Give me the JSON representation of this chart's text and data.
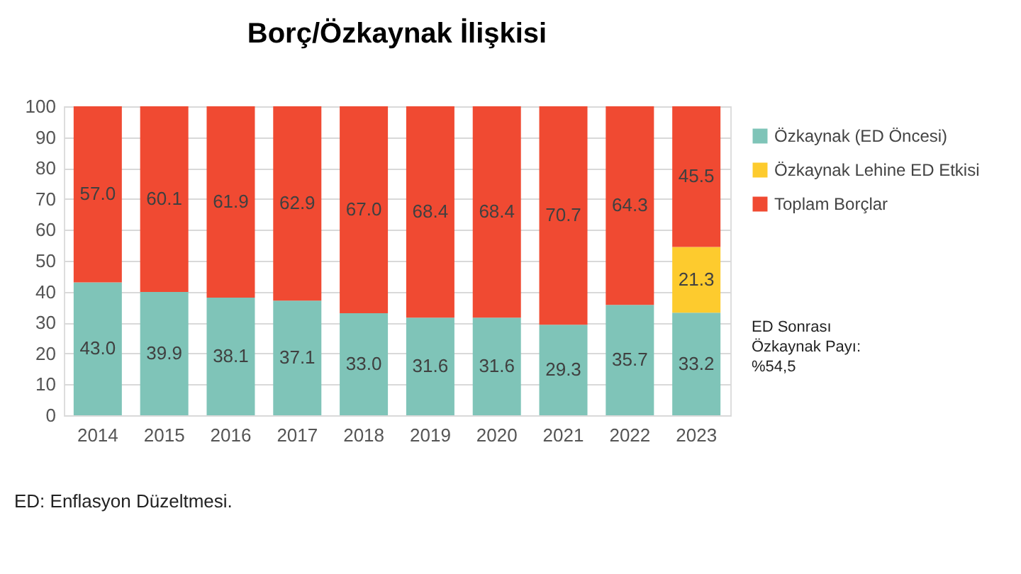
{
  "chart_data": {
    "type": "bar",
    "title": "Borç/Özkaynak İlişkisi",
    "stacked": true,
    "grid": "y",
    "legend": "right",
    "categories": [
      "2014",
      "2015",
      "2016",
      "2017",
      "2018",
      "2019",
      "2020",
      "2021",
      "2022",
      "2023"
    ],
    "series": [
      {
        "name": "Özkaynak (ED Öncesi)",
        "color": "#7fc4b8",
        "values": [
          43.0,
          39.9,
          38.1,
          37.1,
          33.0,
          31.6,
          31.6,
          29.3,
          35.7,
          33.2
        ],
        "value_labels": [
          "43.0",
          "39.9",
          "38.1",
          "37.1",
          "33.0",
          "31.6",
          "31.6",
          "29.3",
          "35.7",
          "33.2"
        ]
      },
      {
        "name": "Özkaynak Lehine ED Etkisi",
        "color": "#fdcb2e",
        "values": [
          null,
          null,
          null,
          null,
          null,
          null,
          null,
          null,
          null,
          21.3
        ],
        "value_labels": [
          null,
          null,
          null,
          null,
          null,
          null,
          null,
          null,
          null,
          "21.3"
        ]
      },
      {
        "name": "Toplam Borçlar",
        "color": "#f04a32",
        "values": [
          57.0,
          60.1,
          61.9,
          62.9,
          67.0,
          68.4,
          68.4,
          70.7,
          64.3,
          45.5
        ],
        "value_labels": [
          "57.0",
          "60.1",
          "61.9",
          "62.9",
          "67.0",
          "68.4",
          "68.4",
          "70.7",
          "64.3",
          "45.5"
        ]
      }
    ],
    "ylim": [
      0,
      100
    ],
    "yticks": [
      0,
      10,
      20,
      30,
      40,
      50,
      60,
      70,
      80,
      90,
      100
    ],
    "annotations": [
      "ED Sonrası\nÖzkaynak Payı:\n%54,5",
      "ED: Enflasyon Düzeltmesi."
    ]
  }
}
